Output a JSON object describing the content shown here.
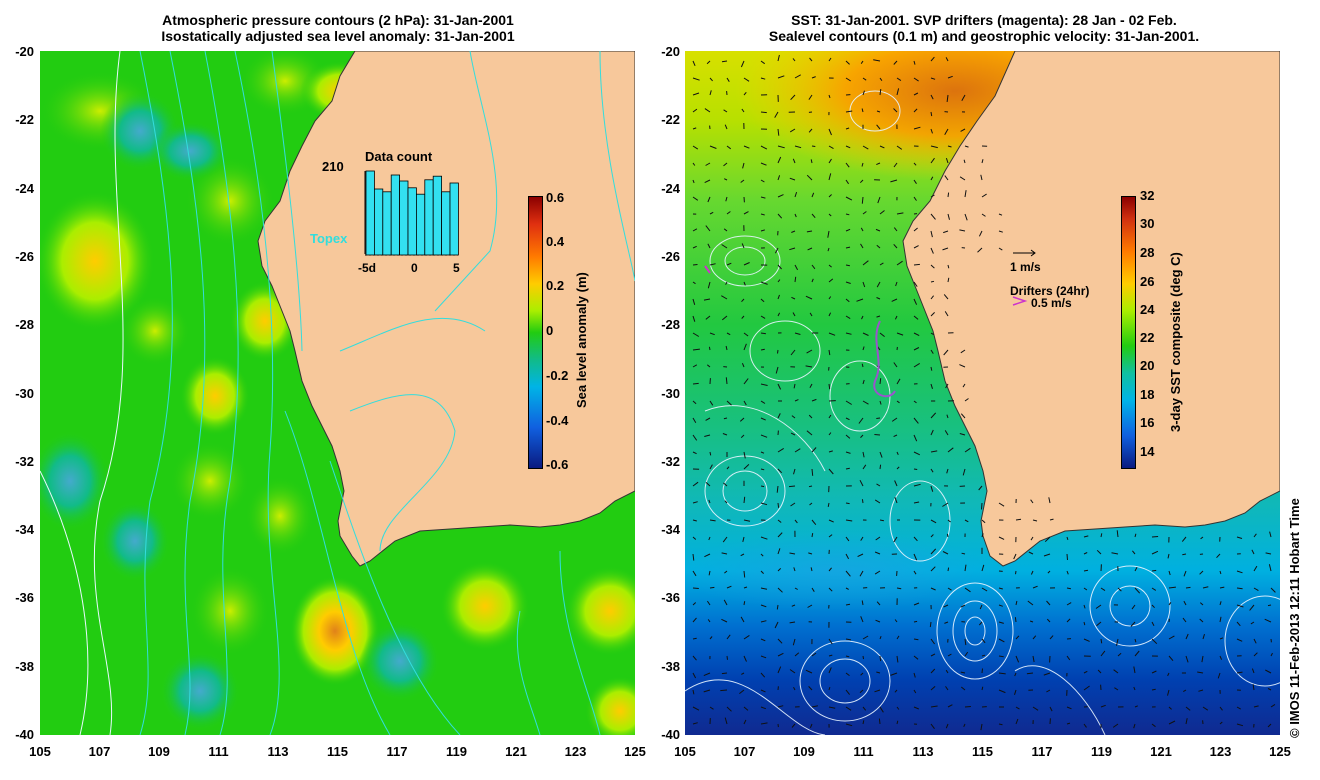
{
  "left": {
    "title_line1": "Atmospheric pressure contours (2 hPa): 31-Jan-2001",
    "title_line2": "Isostatically adjusted sea level anomaly: 31-Jan-2001",
    "y_ticks": [
      "-20",
      "-22",
      "-24",
      "-26",
      "-28",
      "-30",
      "-32",
      "-34",
      "-36",
      "-38",
      "-40"
    ],
    "x_ticks": [
      "105",
      "107",
      "109",
      "111",
      "113",
      "115",
      "117",
      "119",
      "121",
      "123",
      "125"
    ],
    "colorbar_ticks": [
      "0.6",
      "0.4",
      "0.2",
      "0",
      "-0.2",
      "-0.4",
      "-0.6"
    ],
    "colorbar_label": "Sea level anomaly (m)",
    "histogram": {
      "title": "Data count",
      "max_label": "210",
      "x_labels": [
        "-5d",
        "0",
        "5"
      ],
      "bar_values": [
        210,
        165,
        158,
        200,
        185,
        168,
        152,
        188,
        197,
        158,
        180
      ],
      "max_value": 210
    },
    "topex_label": "Topex"
  },
  "right": {
    "title_line1": "SST: 31-Jan-2001. SVP drifters (magenta): 28 Jan - 02 Feb.",
    "title_line2": "Sealevel contours (0.1 m) and geostrophic velocity: 31-Jan-2001.",
    "y_ticks": [
      "-20",
      "-22",
      "-24",
      "-26",
      "-28",
      "-30",
      "-32",
      "-34",
      "-36",
      "-38",
      "-40"
    ],
    "x_ticks": [
      "105",
      "107",
      "109",
      "111",
      "113",
      "115",
      "117",
      "119",
      "121",
      "123",
      "125"
    ],
    "colorbar_ticks": [
      "32",
      "30",
      "28",
      "26",
      "24",
      "22",
      "20",
      "18",
      "16",
      "14"
    ],
    "colorbar_label": "3-day SST composite (deg C)",
    "velocity_scale_label": "1 m/s",
    "drifters_label": "Drifters (24hr)",
    "drifters_scale_label": "0.5 m/s"
  },
  "credit": "© IMOS 11-Feb-2013 12:11 Hobart Time",
  "colors": {
    "land": "#f7c89b",
    "sla_ocean": "#22cc11",
    "contour": "#33dddd",
    "drifter": "#cc33cc"
  }
}
